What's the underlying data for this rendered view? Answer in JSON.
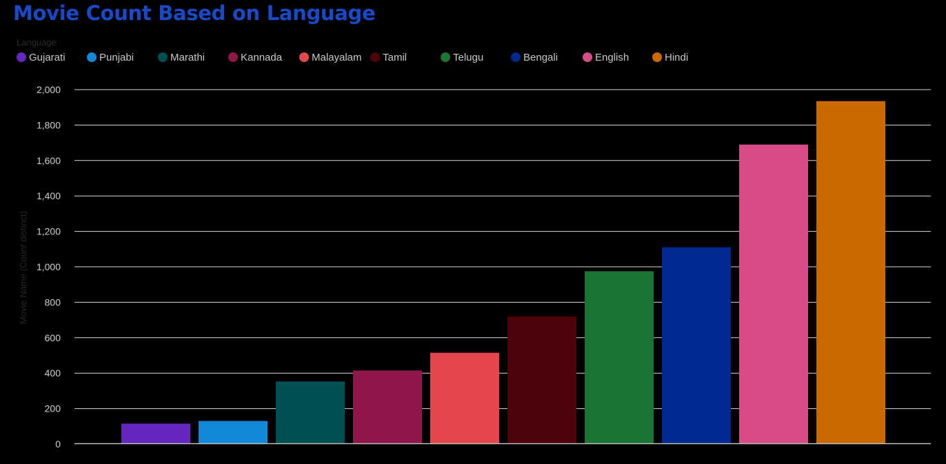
{
  "chart_data": {
    "type": "bar",
    "title": "Movie Count Based on Language",
    "legend_title": "Language",
    "legend_placement": "top-left",
    "xlabel": "",
    "ylabel": "Movie Name (Count distinct)",
    "ylim": [
      0,
      2000
    ],
    "yticks": [
      0,
      200,
      400,
      600,
      800,
      1000,
      1200,
      1400,
      1600,
      1800,
      2000
    ],
    "ytick_labels": [
      "0",
      "200",
      "400",
      "600",
      "800",
      "1,000",
      "1,200",
      "1,400",
      "1,600",
      "1,800",
      "2,000"
    ],
    "grid": true,
    "categories": [
      "Gujarati",
      "Punjabi",
      "Marathi",
      "Kannada",
      "Malayalam",
      "Tamil",
      "Telugu",
      "Bengali",
      "English",
      "Hindi"
    ],
    "values": [
      115,
      130,
      353,
      415,
      515,
      720,
      975,
      1110,
      1690,
      1935
    ],
    "colors": [
      "#6527bd",
      "#1289d9",
      "#005052",
      "#91164c",
      "#e5474e",
      "#4e030a",
      "#1a7532",
      "#002a91",
      "#d74b89",
      "#cc6a00"
    ]
  }
}
